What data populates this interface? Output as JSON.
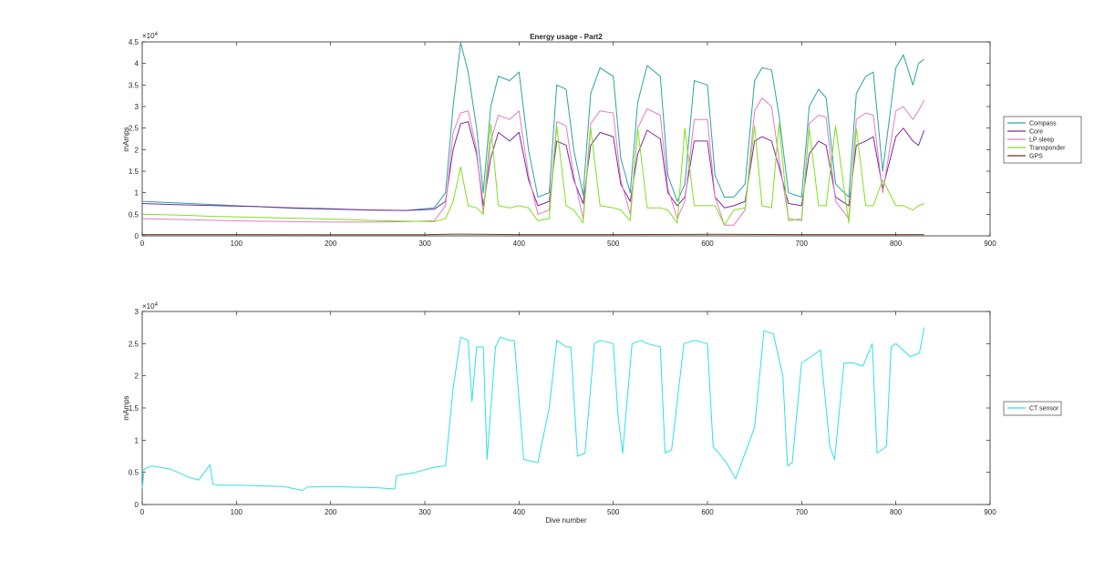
{
  "chart_data": [
    {
      "type": "line",
      "title": "Energy usage - Part2",
      "xlabel": "",
      "ylabel": "mAmps",
      "xlim": [
        0,
        900
      ],
      "ylim": [
        0,
        45000
      ],
      "exponent_label": "×10",
      "exponent_power": "4",
      "xticks": [
        "0",
        "100",
        "200",
        "300",
        "400",
        "500",
        "600",
        "700",
        "800",
        "900"
      ],
      "yticks": [
        "0",
        "0.5",
        "1",
        "1.5",
        "2",
        "2.5",
        "3",
        "3.5",
        "4",
        "4.5"
      ],
      "ytick_values": [
        0,
        5000,
        10000,
        15000,
        20000,
        25000,
        30000,
        35000,
        40000,
        45000
      ],
      "grid": false,
      "legend_position": "outside-right",
      "series": [
        {
          "name": "Compass",
          "color": "#2ca3a3",
          "x": [
            0,
            40,
            80,
            120,
            160,
            200,
            240,
            280,
            310,
            322,
            330,
            338,
            346,
            355,
            362,
            370,
            378,
            390,
            400,
            410,
            420,
            432,
            440,
            450,
            458,
            468,
            476,
            486,
            500,
            508,
            518,
            526,
            536,
            550,
            558,
            568,
            576,
            586,
            600,
            608,
            618,
            628,
            640,
            650,
            658,
            668,
            676,
            686,
            700,
            708,
            718,
            726,
            736,
            750,
            758,
            768,
            776,
            786,
            800,
            808,
            818,
            824,
            830
          ],
          "y": [
            8000,
            7600,
            7200,
            6800,
            6400,
            6200,
            6000,
            5900,
            6500,
            10000,
            30000,
            44800,
            38000,
            25000,
            10000,
            30000,
            37000,
            36000,
            38000,
            20000,
            9000,
            10000,
            35000,
            34000,
            20000,
            9500,
            33000,
            39000,
            37000,
            18000,
            10000,
            31000,
            39500,
            37000,
            14000,
            8000,
            12000,
            36000,
            35000,
            14000,
            9000,
            9000,
            12000,
            36000,
            39000,
            38500,
            28000,
            10000,
            9000,
            30000,
            34000,
            32000,
            12000,
            9000,
            33000,
            37000,
            38000,
            15000,
            39000,
            42000,
            35000,
            40000,
            41000
          ]
        },
        {
          "name": "Core",
          "color": "#7b2a9e",
          "x": [
            0,
            40,
            80,
            120,
            160,
            200,
            240,
            280,
            310,
            322,
            330,
            338,
            346,
            355,
            362,
            370,
            378,
            390,
            400,
            410,
            420,
            432,
            440,
            450,
            458,
            468,
            476,
            486,
            500,
            508,
            518,
            526,
            536,
            550,
            558,
            568,
            576,
            586,
            600,
            608,
            618,
            628,
            640,
            650,
            658,
            668,
            676,
            686,
            700,
            708,
            718,
            726,
            736,
            750,
            758,
            768,
            776,
            786,
            800,
            808,
            818,
            824,
            830
          ],
          "y": [
            7500,
            7200,
            7000,
            6800,
            6500,
            6300,
            6000,
            5900,
            6200,
            8000,
            20000,
            26000,
            26500,
            19000,
            7000,
            18000,
            24000,
            22000,
            24000,
            13000,
            7000,
            8000,
            22000,
            21000,
            13000,
            7500,
            21000,
            24000,
            23000,
            12000,
            8000,
            19000,
            24500,
            22500,
            10000,
            7000,
            9000,
            22000,
            22000,
            9000,
            6500,
            7000,
            8000,
            22000,
            23000,
            22000,
            16000,
            7500,
            7000,
            19000,
            22000,
            21000,
            9000,
            7000,
            21000,
            22000,
            23000,
            11000,
            23000,
            25000,
            22000,
            21000,
            24500
          ]
        },
        {
          "name": "LP sleep",
          "color": "#e57bc4",
          "x": [
            0,
            40,
            80,
            120,
            160,
            200,
            240,
            280,
            310,
            322,
            330,
            338,
            346,
            355,
            362,
            370,
            378,
            390,
            400,
            410,
            420,
            432,
            440,
            450,
            458,
            468,
            476,
            486,
            500,
            508,
            518,
            526,
            536,
            550,
            558,
            568,
            576,
            586,
            600,
            608,
            618,
            628,
            640,
            650,
            658,
            668,
            676,
            686,
            700,
            708,
            718,
            726,
            736,
            750,
            758,
            768,
            776,
            786,
            800,
            808,
            818,
            824,
            830
          ],
          "y": [
            4000,
            3800,
            3600,
            3400,
            3300,
            3200,
            3200,
            3300,
            3500,
            7000,
            24000,
            28500,
            29000,
            20000,
            5000,
            22000,
            28000,
            27000,
            29000,
            14000,
            5000,
            6000,
            26500,
            25500,
            14000,
            4000,
            26000,
            29000,
            28500,
            13000,
            5000,
            25000,
            29500,
            28000,
            11000,
            4000,
            8000,
            27000,
            27000,
            9000,
            2500,
            2500,
            6000,
            29000,
            32000,
            30000,
            18000,
            4000,
            3500,
            26000,
            28000,
            27500,
            8000,
            4000,
            27000,
            28500,
            28000,
            10000,
            29000,
            30000,
            27000,
            29000,
            31500
          ]
        },
        {
          "name": "Transponder",
          "color": "#7fe11e",
          "x": [
            0,
            40,
            80,
            120,
            160,
            200,
            240,
            280,
            310,
            322,
            330,
            338,
            346,
            355,
            362,
            370,
            378,
            390,
            400,
            410,
            420,
            432,
            440,
            450,
            458,
            468,
            476,
            486,
            500,
            508,
            518,
            526,
            536,
            550,
            558,
            568,
            576,
            586,
            600,
            608,
            618,
            628,
            640,
            650,
            658,
            668,
            676,
            686,
            700,
            708,
            718,
            726,
            736,
            750,
            758,
            768,
            776,
            786,
            800,
            808,
            818,
            824,
            830
          ],
          "y": [
            5000,
            4800,
            4500,
            4300,
            4100,
            3900,
            3600,
            3400,
            3300,
            4000,
            8000,
            16000,
            7000,
            6500,
            5000,
            26000,
            7000,
            6500,
            7000,
            6500,
            3500,
            4000,
            25500,
            7000,
            6000,
            3000,
            25000,
            7000,
            6500,
            6000,
            3500,
            25000,
            6500,
            6500,
            6000,
            3000,
            25000,
            7000,
            7000,
            7000,
            2500,
            6000,
            6500,
            25500,
            7000,
            6500,
            26000,
            3500,
            4000,
            25000,
            7000,
            7000,
            25500,
            3000,
            25000,
            7000,
            7000,
            13000,
            7000,
            7000,
            6000,
            7000,
            7500
          ]
        },
        {
          "name": "GPS",
          "color": "#6b3a1e",
          "x": [
            0,
            100,
            200,
            300,
            330,
            400,
            500,
            600,
            700,
            800,
            830
          ],
          "y": [
            300,
            300,
            250,
            250,
            400,
            300,
            300,
            350,
            300,
            300,
            300
          ]
        }
      ]
    },
    {
      "type": "line",
      "title": "",
      "xlabel": "Dive number",
      "ylabel": "mAmps",
      "xlim": [
        0,
        900
      ],
      "ylim": [
        0,
        30000
      ],
      "exponent_label": "×10",
      "exponent_power": "4",
      "xticks": [
        "0",
        "100",
        "200",
        "300",
        "400",
        "500",
        "600",
        "700",
        "800",
        "900"
      ],
      "yticks": [
        "0",
        "0.5",
        "1",
        "1.5",
        "2",
        "2.5",
        "3"
      ],
      "ytick_values": [
        0,
        5000,
        10000,
        15000,
        20000,
        25000,
        30000
      ],
      "grid": false,
      "legend_position": "outside-right",
      "series": [
        {
          "name": "CT sensor",
          "color": "#2ee0e6",
          "x": [
            0,
            2,
            10,
            30,
            50,
            60,
            72,
            75,
            80,
            100,
            150,
            170,
            175,
            200,
            250,
            268,
            270,
            290,
            310,
            322,
            330,
            338,
            346,
            350,
            355,
            362,
            366,
            375,
            380,
            390,
            395,
            405,
            420,
            432,
            440,
            450,
            455,
            462,
            470,
            480,
            486,
            500,
            505,
            510,
            520,
            530,
            536,
            550,
            555,
            562,
            575,
            586,
            600,
            606,
            612,
            620,
            630,
            640,
            650,
            660,
            670,
            680,
            685,
            690,
            700,
            710,
            720,
            730,
            735,
            745,
            755,
            765,
            775,
            780,
            790,
            795,
            800,
            815,
            825,
            830
          ],
          "y": [
            2500,
            5500,
            6000,
            5500,
            4200,
            3800,
            6200,
            3200,
            3000,
            3000,
            2800,
            2200,
            2700,
            2800,
            2600,
            2400,
            4500,
            5000,
            5800,
            6000,
            18000,
            26000,
            25500,
            16000,
            24500,
            24500,
            7000,
            24500,
            26000,
            25500,
            25500,
            7000,
            6500,
            15000,
            25500,
            24500,
            24500,
            7500,
            8000,
            25000,
            25500,
            25000,
            14000,
            8000,
            25000,
            25500,
            25000,
            24500,
            8000,
            8500,
            25000,
            25500,
            25000,
            9000,
            8000,
            6500,
            4000,
            8000,
            12000,
            27000,
            26500,
            20000,
            6000,
            6500,
            22000,
            23000,
            24000,
            9000,
            7000,
            22000,
            22000,
            21500,
            25000,
            8000,
            9000,
            24500,
            25000,
            23000,
            23500,
            27500
          ]
        }
      ]
    }
  ]
}
